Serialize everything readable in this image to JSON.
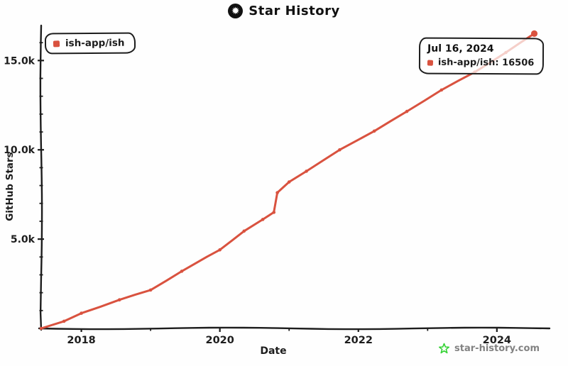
{
  "header": {
    "title": "Star History"
  },
  "legend": {
    "items": [
      {
        "label": "ish-app/ish",
        "color": "#d9523f"
      }
    ]
  },
  "tooltip": {
    "date": "Jul 16, 2024",
    "series_label": "ish-app/ish",
    "value": "16506",
    "display": "ish-app/ish: 16506",
    "marker_color": "#d9523f"
  },
  "watermark": {
    "text": "star-history.com",
    "star_color": "#32d232",
    "text_color": "#828282"
  },
  "chart_data": {
    "type": "line",
    "title": "Star History",
    "xlabel": "Date",
    "ylabel": "GitHub Stars",
    "xlim": [
      2017.42,
      2024.75
    ],
    "ylim": [
      0,
      16800
    ],
    "grid": false,
    "legend_position": "top-left",
    "axis_color": "#1d1d1d",
    "x_ticks": [
      {
        "value": 2018,
        "label": "2018"
      },
      {
        "value": 2020,
        "label": "2020"
      },
      {
        "value": 2022,
        "label": "2022"
      },
      {
        "value": 2024,
        "label": "2024"
      }
    ],
    "x_minor_ticks": [
      2019,
      2021,
      2023
    ],
    "y_ticks": [
      {
        "value": 5000,
        "label": "5.0k"
      },
      {
        "value": 10000,
        "label": "10.0k"
      },
      {
        "value": 15000,
        "label": "15.0k"
      }
    ],
    "y_minor_tick_step": 1000,
    "series": [
      {
        "name": "ish-app/ish",
        "color": "#d9523f",
        "final_value": 16506,
        "final_date": "Jul 16, 2024",
        "points": [
          [
            2017.42,
            0
          ],
          [
            2017.75,
            400
          ],
          [
            2018.0,
            850
          ],
          [
            2018.55,
            1600
          ],
          [
            2019.0,
            2150
          ],
          [
            2019.45,
            3200
          ],
          [
            2020.0,
            4400
          ],
          [
            2020.35,
            5450
          ],
          [
            2020.62,
            6100
          ],
          [
            2020.78,
            6500
          ],
          [
            2020.83,
            7600
          ],
          [
            2021.0,
            8200
          ],
          [
            2021.25,
            8800
          ],
          [
            2021.73,
            10000
          ],
          [
            2022.23,
            11050
          ],
          [
            2022.7,
            12150
          ],
          [
            2023.2,
            13350
          ],
          [
            2023.68,
            14350
          ],
          [
            2024.13,
            15450
          ],
          [
            2024.54,
            16506
          ]
        ]
      }
    ]
  }
}
